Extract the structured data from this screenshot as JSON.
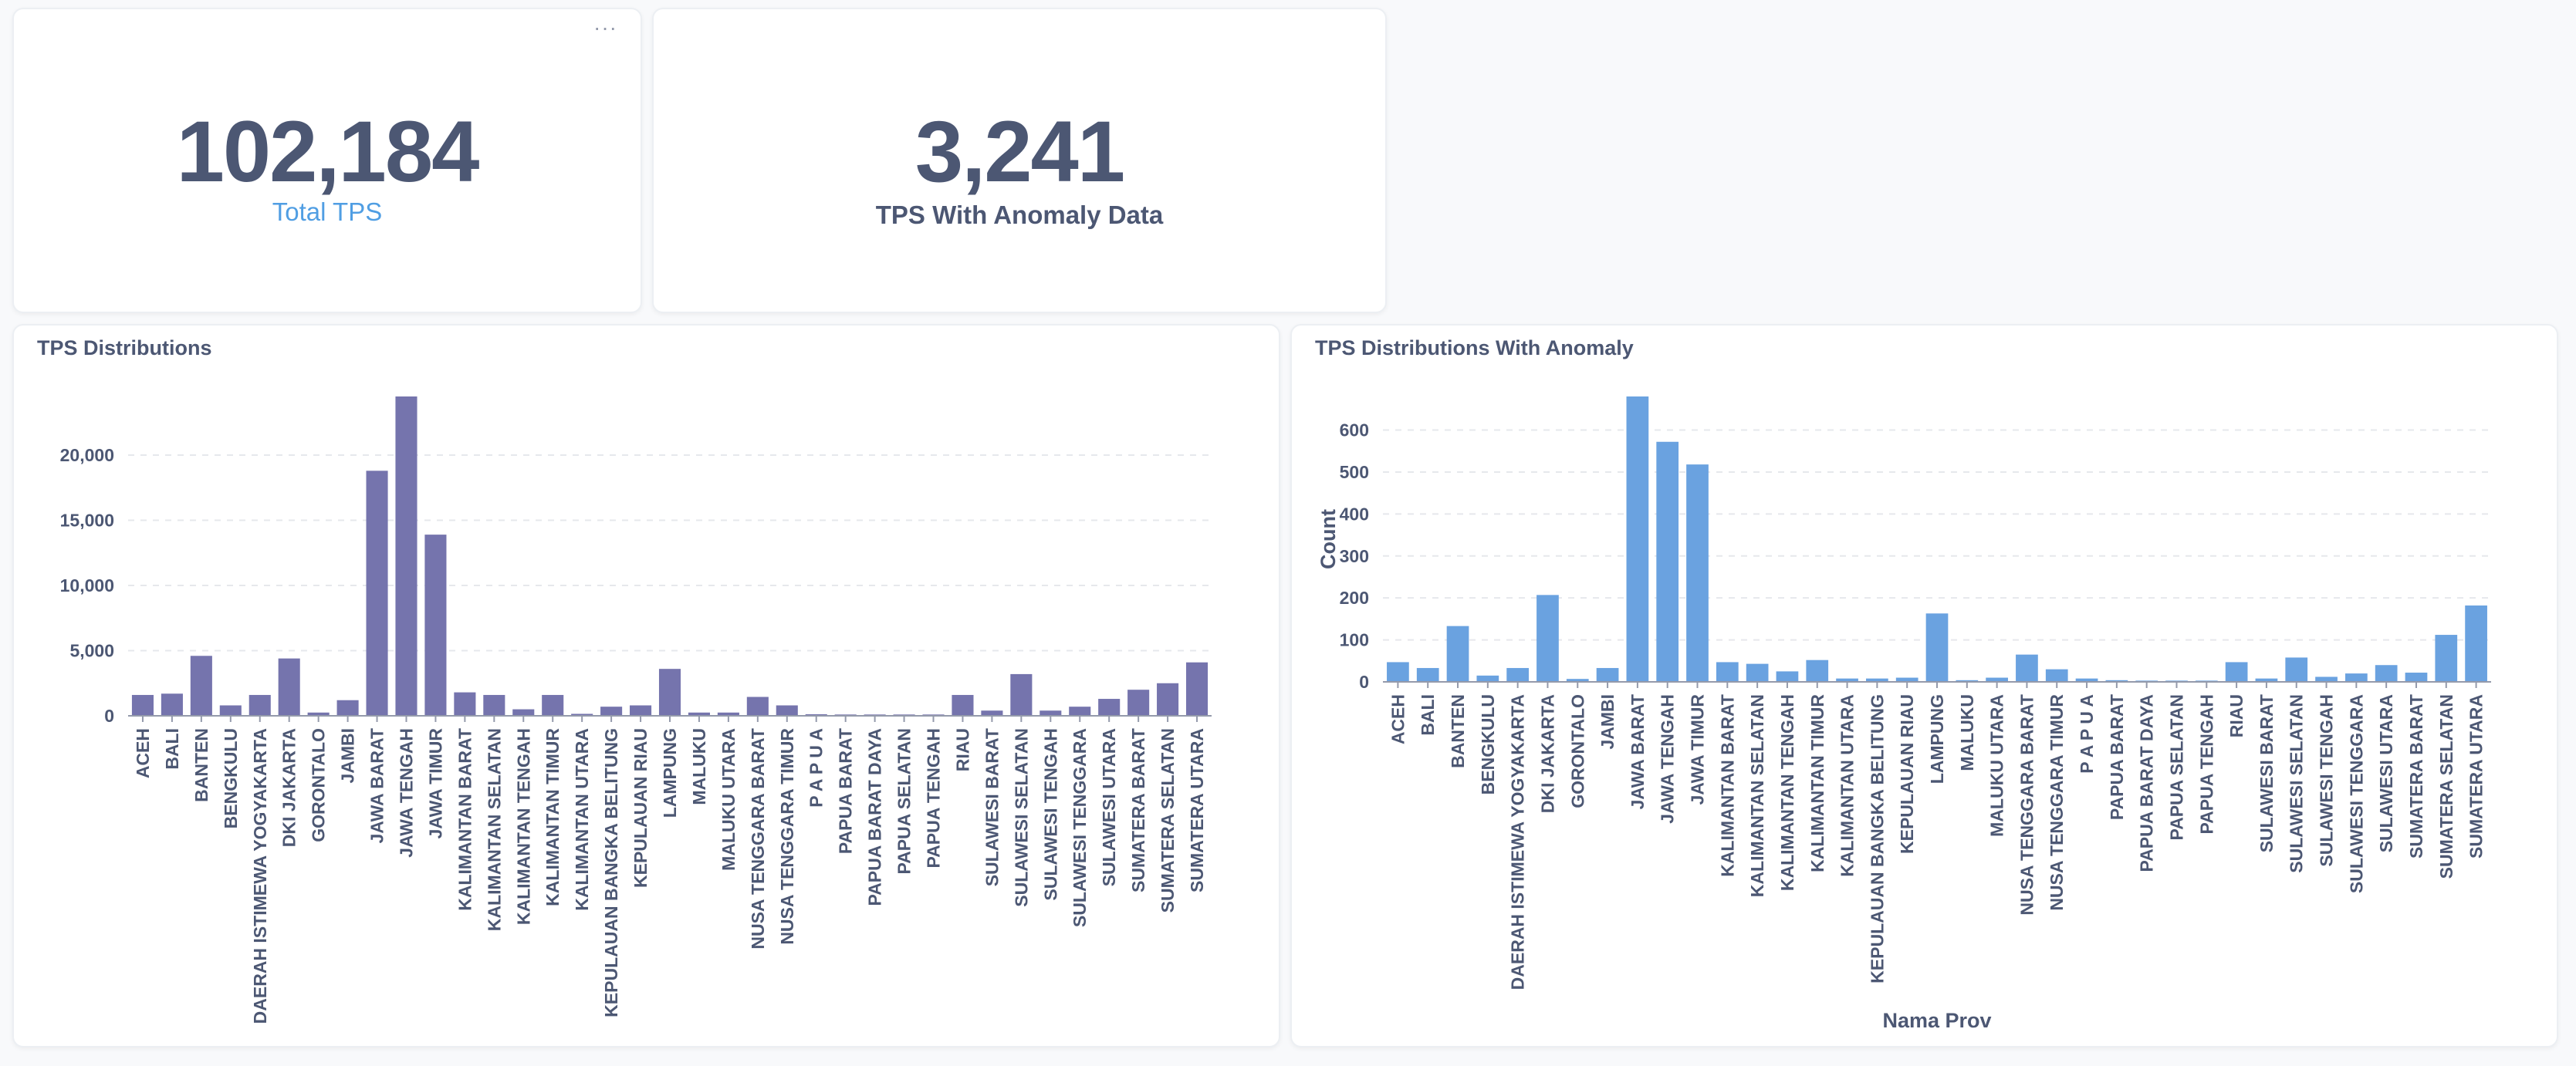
{
  "scalar_total": {
    "value": "102,184",
    "label": "Total TPS",
    "menu_icon": "ellipsis-icon"
  },
  "scalar_anomaly": {
    "value": "3,241",
    "label": "TPS With Anomaly Data"
  },
  "colors": {
    "bar_tps": "#7574ad",
    "bar_anomaly": "#6aa2e0",
    "number": "#4c5773",
    "link_label": "#509ee3"
  },
  "chart_data": [
    {
      "type": "bar",
      "title": "TPS Distributions",
      "xlabel": "",
      "ylabel": "",
      "ylim": [
        0,
        24500
      ],
      "yticks": [
        0,
        5000,
        10000,
        15000,
        20000
      ],
      "ytick_labels": [
        "0",
        "5,000",
        "10,000",
        "15,000",
        "20,000"
      ],
      "grid": true,
      "categories": [
        "ACEH",
        "BALI",
        "BANTEN",
        "BENGKULU",
        "DAERAH ISTIMEWA YOGYAKARTA",
        "DKI JAKARTA",
        "GORONTALO",
        "JAMBI",
        "JAWA BARAT",
        "JAWA TENGAH",
        "JAWA TIMUR",
        "KALIMANTAN BARAT",
        "KALIMANTAN SELATAN",
        "KALIMANTAN TENGAH",
        "KALIMANTAN TIMUR",
        "KALIMANTAN UTARA",
        "KEPULAUAN BANGKA BELITUNG",
        "KEPULAUAN RIAU",
        "LAMPUNG",
        "MALUKU",
        "MALUKU UTARA",
        "NUSA TENGGARA BARAT",
        "NUSA TENGGARA TIMUR",
        "P A P U A",
        "PAPUA BARAT",
        "PAPUA BARAT DAYA",
        "PAPUA SELATAN",
        "PAPUA TENGAH",
        "RIAU",
        "SULAWESI BARAT",
        "SULAWESI SELATAN",
        "SULAWESI TENGAH",
        "SULAWESI TENGGARA",
        "SULAWESI UTARA",
        "SUMATERA BARAT",
        "SUMATERA SELATAN",
        "SUMATERA UTARA"
      ],
      "values": [
        1600,
        1700,
        4600,
        800,
        1600,
        4400,
        250,
        1200,
        18800,
        24500,
        13900,
        1800,
        1600,
        500,
        1600,
        150,
        700,
        800,
        3600,
        250,
        250,
        1450,
        800,
        120,
        100,
        100,
        100,
        100,
        1600,
        400,
        3200,
        400,
        700,
        1300,
        2000,
        2500,
        4100
      ]
    },
    {
      "type": "bar",
      "title": "TPS Distributions With Anomaly",
      "xlabel": "Nama Prov",
      "ylabel": "Count",
      "ylim": [
        0,
        680
      ],
      "yticks": [
        0,
        100,
        200,
        300,
        400,
        500,
        600
      ],
      "ytick_labels": [
        "0",
        "100",
        "200",
        "300",
        "400",
        "500",
        "600"
      ],
      "grid": true,
      "categories": [
        "ACEH",
        "BALI",
        "BANTEN",
        "BENGKULU",
        "DAERAH ISTIMEWA YOGYAKARTA",
        "DKI JAKARTA",
        "GORONTALO",
        "JAMBI",
        "JAWA BARAT",
        "JAWA TENGAH",
        "JAWA TIMUR",
        "KALIMANTAN BARAT",
        "KALIMANTAN SELATAN",
        "KALIMANTAN TENGAH",
        "KALIMANTAN TIMUR",
        "KALIMANTAN UTARA",
        "KEPULAUAN BANGKA BELITUNG",
        "KEPULAUAN RIAU",
        "LAMPUNG",
        "MALUKU",
        "MALUKU UTARA",
        "NUSA TENGGARA BARAT",
        "NUSA TENGGARA TIMUR",
        "P A P U A",
        "PAPUA BARAT",
        "PAPUA BARAT DAYA",
        "PAPUA SELATAN",
        "PAPUA TENGAH",
        "RIAU",
        "SULAWESI BARAT",
        "SULAWESI SELATAN",
        "SULAWESI TENGAH",
        "SULAWESI TENGGARA",
        "SULAWESI UTARA",
        "SUMATERA BARAT",
        "SUMATERA SELATAN",
        "SUMATERA UTARA"
      ],
      "values": [
        47,
        33,
        133,
        15,
        33,
        207,
        7,
        33,
        680,
        572,
        518,
        47,
        43,
        25,
        52,
        8,
        8,
        10,
        163,
        4,
        10,
        65,
        30,
        8,
        4,
        3,
        3,
        3,
        47,
        8,
        58,
        12,
        20,
        40,
        22,
        112,
        182
      ]
    }
  ]
}
